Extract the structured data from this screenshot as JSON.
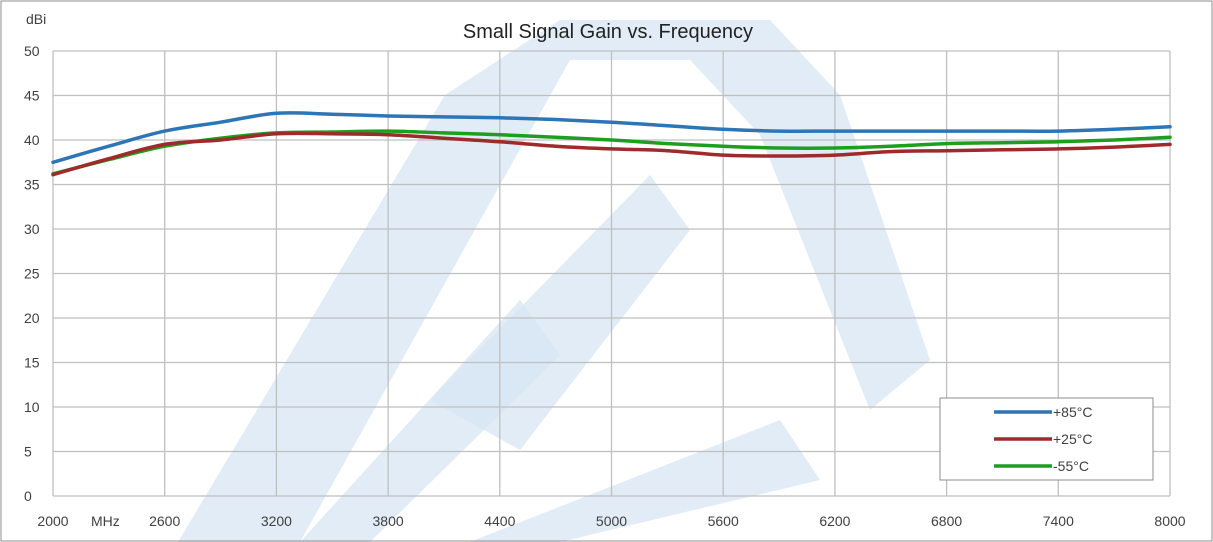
{
  "chart_data": {
    "type": "line",
    "title": "Small Signal Gain vs. Frequency",
    "ylabel": "dBi",
    "xunit": "MHz",
    "xlim": [
      2000,
      8000
    ],
    "ylim": [
      0,
      50
    ],
    "x_ticks": [
      2000,
      2600,
      3200,
      3800,
      4400,
      5000,
      5600,
      6200,
      6800,
      7400,
      8000
    ],
    "y_ticks": [
      0,
      5,
      10,
      15,
      20,
      25,
      30,
      35,
      40,
      45,
      50
    ],
    "grid": true,
    "legend_position": "bottom-right",
    "series": [
      {
        "name": "+85°C",
        "color": "#2E75B6",
        "x": [
          2000,
          2300,
          2600,
          2900,
          3200,
          3500,
          3800,
          4100,
          4400,
          4700,
          5000,
          5300,
          5600,
          5900,
          6200,
          6500,
          6800,
          7100,
          7400,
          7700,
          8000
        ],
        "y": [
          37.5,
          39.3,
          41.0,
          42.0,
          43.0,
          42.9,
          42.7,
          42.6,
          42.5,
          42.3,
          42.0,
          41.6,
          41.2,
          41.0,
          41.0,
          41.0,
          41.0,
          41.0,
          41.0,
          41.2,
          41.5
        ]
      },
      {
        "name": "+25°C",
        "color": "#9E2A2B",
        "x": [
          2000,
          2300,
          2600,
          2900,
          3200,
          3500,
          3800,
          4100,
          4400,
          4700,
          5000,
          5300,
          5600,
          5900,
          6200,
          6500,
          6800,
          7100,
          7400,
          7700,
          8000
        ],
        "y": [
          36.1,
          37.9,
          39.5,
          40.0,
          40.7,
          40.7,
          40.6,
          40.2,
          39.8,
          39.3,
          39.0,
          38.8,
          38.3,
          38.2,
          38.3,
          38.7,
          38.8,
          38.9,
          39.0,
          39.2,
          39.5
        ]
      },
      {
        "name": "-55°C",
        "color": "#1E9E1E",
        "x": [
          2000,
          2300,
          2600,
          2900,
          3200,
          3500,
          3800,
          4100,
          4400,
          4700,
          5000,
          5300,
          5600,
          5900,
          6200,
          6500,
          6800,
          7100,
          7400,
          7700,
          8000
        ],
        "y": [
          36.2,
          37.8,
          39.3,
          40.2,
          40.8,
          40.9,
          41.0,
          40.8,
          40.6,
          40.3,
          40.0,
          39.6,
          39.3,
          39.1,
          39.1,
          39.3,
          39.6,
          39.7,
          39.8,
          40.0,
          40.3
        ]
      }
    ]
  },
  "watermark": {
    "color": "#D7E6F3"
  }
}
